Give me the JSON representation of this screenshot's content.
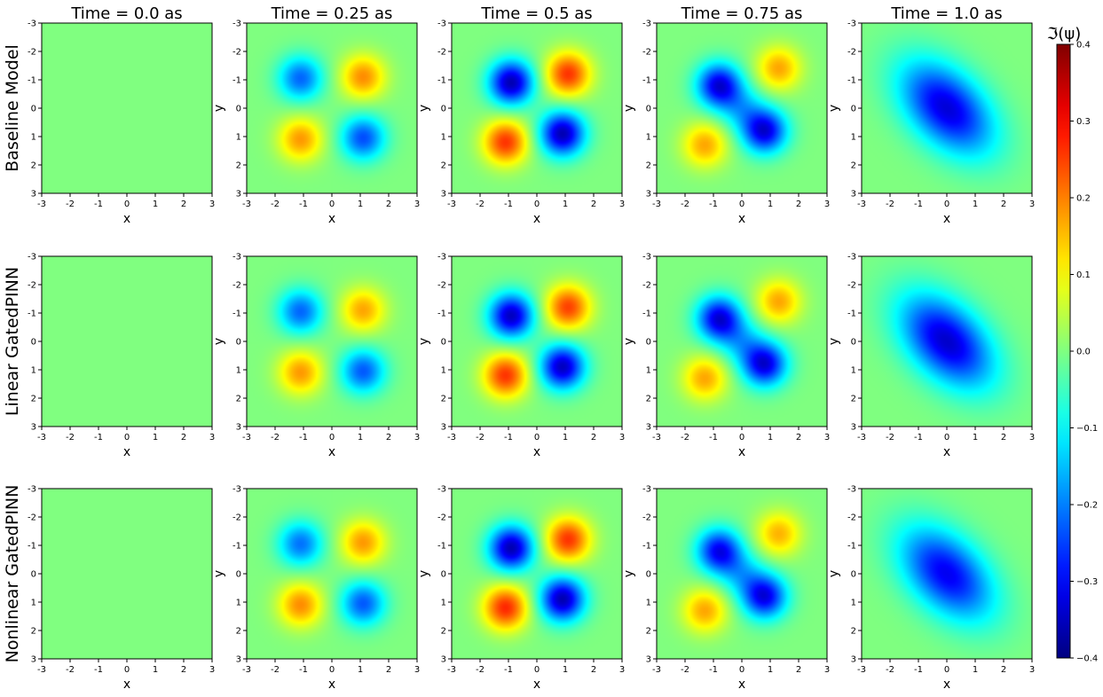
{
  "chart_data": {
    "type": "heatmap",
    "quantity": "imaginary part of wavefunction",
    "colorbar": {
      "label": "ℑ(ψ)",
      "colormap": "jet",
      "range": [
        -0.4,
        0.4
      ],
      "ticks": [
        "0.4",
        "0.3",
        "0.2",
        "0.1",
        "0.0",
        "−0.1",
        "−0.2",
        "−0.3",
        "−0.4"
      ]
    },
    "column_titles": [
      "Time = 0.0 as",
      "Time = 0.25 as",
      "Time = 0.5 as",
      "Time = 0.75 as",
      "Time = 1.0 as"
    ],
    "row_labels": [
      "Baseline Model",
      "Linear GatedPINN",
      "Nonlinear GatedPINN"
    ],
    "xlabel": "x",
    "ylabel": "y",
    "x_ticks": [
      "-3",
      "-2",
      "-1",
      "0",
      "1",
      "2",
      "3"
    ],
    "y_ticks": [
      "-3",
      "-2",
      "-1",
      "0",
      "1",
      "2",
      "3"
    ],
    "xlim": [
      -3,
      3
    ],
    "ylim": [
      -3,
      3
    ],
    "y_axis_inverted": true,
    "times": [
      0.0,
      0.25,
      0.5,
      0.75,
      1.0
    ],
    "blob_sigma": 0.55,
    "panel_fields": [
      [
        {
          "blobs": []
        },
        {
          "blobs": [
            {
              "x": -1.1,
              "y": -1.05,
              "amp": -0.22
            },
            {
              "x": 1.1,
              "y": 1.05,
              "amp": -0.24
            },
            {
              "x": 1.1,
              "y": -1.1,
              "amp": 0.19
            },
            {
              "x": -1.1,
              "y": 1.1,
              "amp": 0.18
            }
          ]
        },
        {
          "blobs": [
            {
              "x": -0.9,
              "y": -0.9,
              "amp": -0.36
            },
            {
              "x": 0.9,
              "y": 0.9,
              "amp": -0.36
            },
            {
              "x": 1.1,
              "y": -1.2,
              "amp": 0.26
            },
            {
              "x": -1.1,
              "y": 1.2,
              "amp": 0.26
            }
          ]
        },
        {
          "blobs": [
            {
              "x": -0.8,
              "y": -0.8,
              "amp": -0.33
            },
            {
              "x": 0.8,
              "y": 0.8,
              "amp": -0.33
            },
            {
              "x": 0.0,
              "y": 0.0,
              "amp": -0.12
            },
            {
              "x": 1.3,
              "y": -1.4,
              "amp": 0.17
            },
            {
              "x": -1.3,
              "y": 1.3,
              "amp": 0.17
            }
          ]
        },
        {
          "blobs": [
            {
              "x": 0.0,
              "y": 0.0,
              "amp": -0.33,
              "sx": 1.15,
              "sy": 1.15,
              "rho": 0.45
            }
          ]
        }
      ],
      [
        {
          "blobs": []
        },
        {
          "blobs": [
            {
              "x": -1.1,
              "y": -1.05,
              "amp": -0.22
            },
            {
              "x": 1.1,
              "y": 1.05,
              "amp": -0.23
            },
            {
              "x": 1.1,
              "y": -1.1,
              "amp": 0.17
            },
            {
              "x": -1.1,
              "y": 1.1,
              "amp": 0.18
            }
          ]
        },
        {
          "blobs": [
            {
              "x": -0.9,
              "y": -0.9,
              "amp": -0.35
            },
            {
              "x": 0.9,
              "y": 0.9,
              "amp": -0.35
            },
            {
              "x": 1.1,
              "y": -1.2,
              "amp": 0.25
            },
            {
              "x": -1.1,
              "y": 1.2,
              "amp": 0.26
            }
          ]
        },
        {
          "blobs": [
            {
              "x": -0.8,
              "y": -0.8,
              "amp": -0.33
            },
            {
              "x": 0.8,
              "y": 0.8,
              "amp": -0.33
            },
            {
              "x": 0.0,
              "y": 0.0,
              "amp": -0.12
            },
            {
              "x": 1.3,
              "y": -1.4,
              "amp": 0.17
            },
            {
              "x": -1.3,
              "y": 1.3,
              "amp": 0.17
            }
          ]
        },
        {
          "blobs": [
            {
              "x": 0.0,
              "y": 0.0,
              "amp": -0.34,
              "sx": 1.15,
              "sy": 1.15,
              "rho": 0.45
            }
          ]
        }
      ],
      [
        {
          "blobs": []
        },
        {
          "blobs": [
            {
              "x": -1.1,
              "y": -1.05,
              "amp": -0.21
            },
            {
              "x": 1.1,
              "y": 1.05,
              "amp": -0.23
            },
            {
              "x": 1.1,
              "y": -1.1,
              "amp": 0.18
            },
            {
              "x": -1.1,
              "y": 1.1,
              "amp": 0.19
            }
          ]
        },
        {
          "blobs": [
            {
              "x": -0.9,
              "y": -0.9,
              "amp": -0.36
            },
            {
              "x": 0.9,
              "y": 0.9,
              "amp": -0.36
            },
            {
              "x": 1.1,
              "y": -1.2,
              "amp": 0.26
            },
            {
              "x": -1.1,
              "y": 1.2,
              "amp": 0.27
            }
          ]
        },
        {
          "blobs": [
            {
              "x": -0.8,
              "y": -0.8,
              "amp": -0.31
            },
            {
              "x": 0.8,
              "y": 0.8,
              "amp": -0.32
            },
            {
              "x": 0.0,
              "y": 0.0,
              "amp": -0.12
            },
            {
              "x": 1.3,
              "y": -1.4,
              "amp": 0.16
            },
            {
              "x": -1.3,
              "y": 1.3,
              "amp": 0.17
            }
          ]
        },
        {
          "blobs": [
            {
              "x": 0.0,
              "y": 0.0,
              "amp": -0.31,
              "sx": 1.15,
              "sy": 1.15,
              "rho": 0.45
            }
          ]
        }
      ]
    ]
  }
}
